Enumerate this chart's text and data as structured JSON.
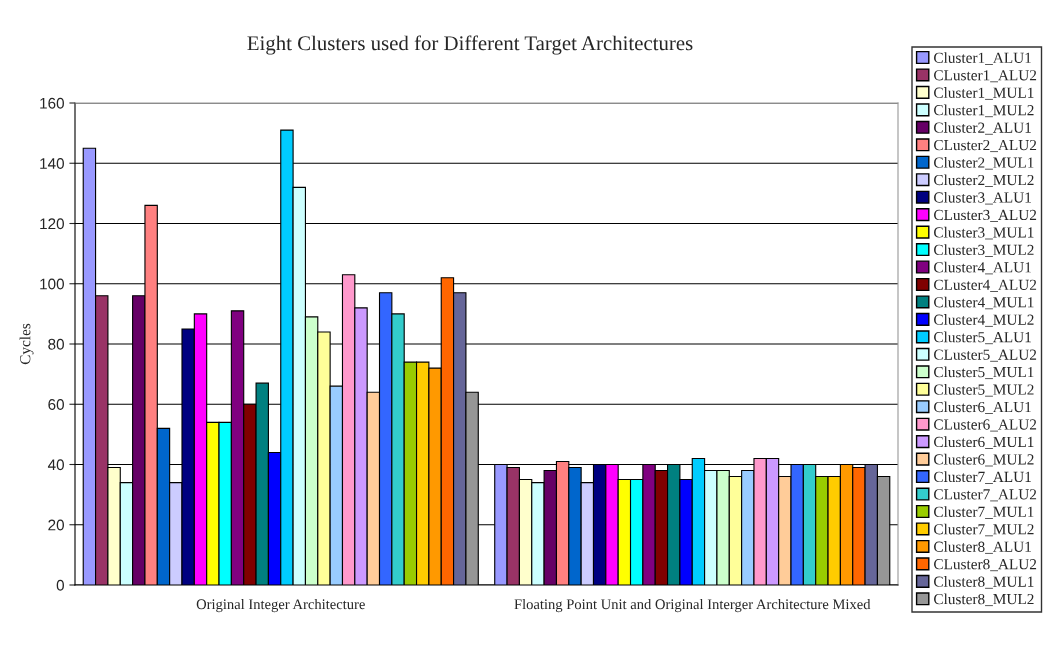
{
  "chart_data": {
    "type": "bar",
    "title": "Eight Clusters used for Different Target Architectures",
    "ylabel": "Cycles",
    "categories": [
      "Original Integer Architecture",
      "Floating Point Unit and Original Interger Architecture Mixed"
    ],
    "ylim": [
      0,
      160
    ],
    "yticks": [
      0,
      20,
      40,
      60,
      80,
      100,
      120,
      140,
      160
    ],
    "grid": "y",
    "legend": "right",
    "series": [
      {
        "name": "Cluster1_ALU1",
        "color": "#9999ff",
        "values": [
          145,
          40
        ]
      },
      {
        "name": "CLuster1_ALU2",
        "color": "#993366",
        "values": [
          96,
          39
        ]
      },
      {
        "name": "Cluster1_MUL1",
        "color": "#ffffcc",
        "values": [
          39,
          35
        ]
      },
      {
        "name": "Cluster1_MUL2",
        "color": "#ccffff",
        "values": [
          34,
          34
        ]
      },
      {
        "name": "Cluster2_ALU1",
        "color": "#660066",
        "values": [
          96,
          38
        ]
      },
      {
        "name": "CLuster2_ALU2",
        "color": "#ff8080",
        "values": [
          126,
          41
        ]
      },
      {
        "name": "Cluster2_MUL1",
        "color": "#0066cc",
        "values": [
          52,
          39
        ]
      },
      {
        "name": "Cluster2_MUL2",
        "color": "#ccccff",
        "values": [
          34,
          34
        ]
      },
      {
        "name": "Cluster3_ALU1",
        "color": "#000080",
        "values": [
          85,
          40
        ]
      },
      {
        "name": "CLuster3_ALU2",
        "color": "#ff00ff",
        "values": [
          90,
          40
        ]
      },
      {
        "name": "Cluster3_MUL1",
        "color": "#ffff00",
        "values": [
          54,
          35
        ]
      },
      {
        "name": "Cluster3_MUL2",
        "color": "#00ffff",
        "values": [
          54,
          35
        ]
      },
      {
        "name": "Cluster4_ALU1",
        "color": "#800080",
        "values": [
          91,
          40
        ]
      },
      {
        "name": "CLuster4_ALU2",
        "color": "#800000",
        "values": [
          60,
          38
        ]
      },
      {
        "name": "Cluster4_MUL1",
        "color": "#008080",
        "values": [
          67,
          40
        ]
      },
      {
        "name": "Cluster4_MUL2",
        "color": "#0000ff",
        "values": [
          44,
          35
        ]
      },
      {
        "name": "Cluster5_ALU1",
        "color": "#00ccff",
        "values": [
          151,
          42
        ]
      },
      {
        "name": "CLuster5_ALU2",
        "color": "#ccffff",
        "values": [
          132,
          38
        ]
      },
      {
        "name": "Cluster5_MUL1",
        "color": "#ccffcc",
        "values": [
          89,
          38
        ]
      },
      {
        "name": "Cluster5_MUL2",
        "color": "#ffff99",
        "values": [
          84,
          36
        ]
      },
      {
        "name": "Cluster6_ALU1",
        "color": "#99ccff",
        "values": [
          66,
          38
        ]
      },
      {
        "name": "CLuster6_ALU2",
        "color": "#ff99cc",
        "values": [
          103,
          42
        ]
      },
      {
        "name": "Cluster6_MUL1",
        "color": "#cc99ff",
        "values": [
          92,
          42
        ]
      },
      {
        "name": "Cluster6_MUL2",
        "color": "#ffcc99",
        "values": [
          64,
          36
        ]
      },
      {
        "name": "Cluster7_ALU1",
        "color": "#3366ff",
        "values": [
          97,
          40
        ]
      },
      {
        "name": "CLuster7_ALU2",
        "color": "#33cccc",
        "values": [
          90,
          40
        ]
      },
      {
        "name": "Cluster7_MUL1",
        "color": "#99cc00",
        "values": [
          74,
          36
        ]
      },
      {
        "name": "Cluster7_MUL2",
        "color": "#ffcc00",
        "values": [
          74,
          36
        ]
      },
      {
        "name": "Cluster8_ALU1",
        "color": "#ff9900",
        "values": [
          72,
          40
        ]
      },
      {
        "name": "CLuster8_ALU2",
        "color": "#ff6600",
        "values": [
          102,
          39
        ]
      },
      {
        "name": "Cluster8_MUL1",
        "color": "#666699",
        "values": [
          97,
          40
        ]
      },
      {
        "name": "Cluster8_MUL2",
        "color": "#969696",
        "values": [
          64,
          36
        ]
      }
    ]
  }
}
